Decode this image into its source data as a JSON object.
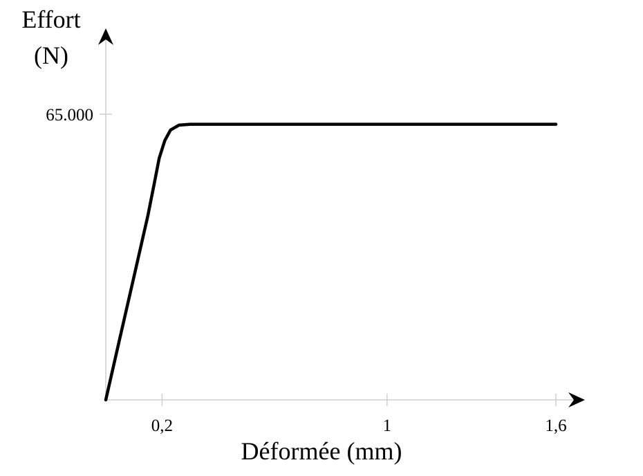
{
  "chart_data": {
    "type": "line",
    "title": "",
    "ylabel_lines": [
      "Effort",
      "(N)"
    ],
    "xlabel": "Déformée (mm)",
    "xlim": [
      0,
      1.6
    ],
    "ylim": [
      0,
      65000
    ],
    "x_ticks": [
      {
        "value": 0.2,
        "label": "0,2"
      },
      {
        "value": 1,
        "label": "1"
      },
      {
        "value": 1.6,
        "label": "1,6"
      }
    ],
    "y_ticks": [
      {
        "value": 65000,
        "label": "65.000"
      }
    ],
    "grid": false,
    "series": [
      {
        "x": [
          0,
          0.05,
          0.1,
          0.15,
          0.17,
          0.19,
          0.21,
          0.23,
          0.26,
          0.3,
          0.6,
          1.0,
          1.4,
          1.6
        ],
        "y": [
          0,
          14000,
          28000,
          42000,
          48500,
          55000,
          59000,
          61400,
          62500,
          62700,
          62700,
          62700,
          62700,
          62700
        ]
      }
    ]
  }
}
